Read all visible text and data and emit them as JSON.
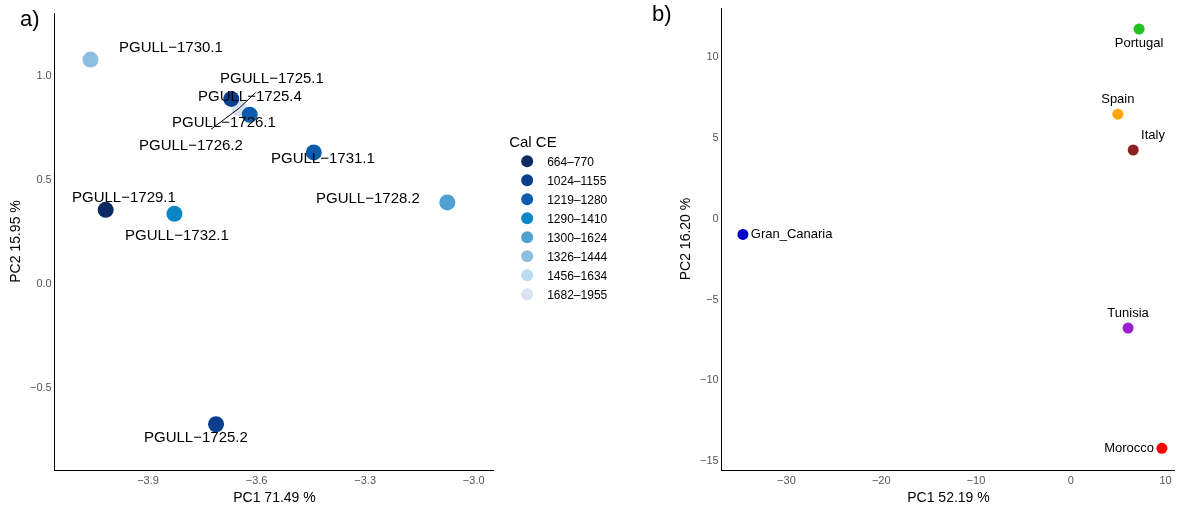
{
  "chart_data": [
    {
      "type": "scatter",
      "title": "a)",
      "xlabel": "PC1 71.49 %",
      "ylabel": "PC2 15.95 %",
      "legend_title": "Cal CE",
      "legend": "right",
      "marker": "circle",
      "xlim": [
        -4.157,
        -2.944
      ],
      "ylim": [
        -0.898,
        1.298
      ],
      "xticks": [
        {
          "value": -3.9,
          "label": "−3.9"
        },
        {
          "value": -3.6,
          "label": "−3.6"
        },
        {
          "value": -3.3,
          "label": "−3.3"
        },
        {
          "value": -3.0,
          "label": "−3.0"
        }
      ],
      "yticks": [
        {
          "value": -0.5,
          "label": "−0.5"
        },
        {
          "value": 0,
          "label": "0.0"
        },
        {
          "value": 0.5,
          "label": "0.5"
        },
        {
          "value": 1,
          "label": "1.0"
        }
      ],
      "series": [
        {
          "name": "664–770",
          "color": "#0b2a63",
          "x": [
            -4.017
          ],
          "values": [
            0.352
          ]
        },
        {
          "name": "1024–1155",
          "color": "#0a3f8f",
          "x": [
            -3.712,
            -3.67
          ],
          "values": [
            -0.678,
            0.885
          ]
        },
        {
          "name": "1219–1280",
          "color": "#0b5cad",
          "x": [
            -3.619,
            -3.442
          ],
          "values": [
            0.809,
            0.628
          ]
        },
        {
          "name": "1290–1410",
          "color": "#0b86c4",
          "x": [
            -3.827
          ],
          "values": [
            0.333
          ]
        },
        {
          "name": "1300–1624",
          "color": "#4fa0d3",
          "x": [
            -3.073
          ],
          "values": [
            0.388
          ]
        },
        {
          "name": "1326–1444",
          "color": "#8fbfe0",
          "x": [
            -4.059
          ],
          "values": [
            1.074
          ]
        },
        {
          "name": "1456–1634",
          "color": "#b9dbf2",
          "x": [
            null
          ],
          "values": [
            null
          ]
        },
        {
          "name": "1682–1955",
          "color": "#d8e2f2",
          "x": [
            -3.648
          ],
          "values": [
            0.841
          ]
        }
      ],
      "annotations": [
        {
          "text": "PGULL−1730.1",
          "x": -4.059,
          "y": 1.074
        },
        {
          "text": "PGULL−1725.1",
          "x": -3.648,
          "y": 0.841
        },
        {
          "text": "PGULL−1725.4",
          "x": -3.67,
          "y": 0.885
        },
        {
          "text": "PGULL−1726.1",
          "x": -3.619,
          "y": 0.809
        },
        {
          "text": "PGULL−1726.2",
          "x": -3.648,
          "y": 0.841
        },
        {
          "text": "PGULL−1731.1",
          "x": -3.442,
          "y": 0.628
        },
        {
          "text": "PGULL−1729.1",
          "x": -4.017,
          "y": 0.352
        },
        {
          "text": "PGULL−1732.1",
          "x": -3.827,
          "y": 0.333
        },
        {
          "text": "PGULL−1728.2",
          "x": -3.073,
          "y": 0.388
        },
        {
          "text": "PGULL−1725.2",
          "x": -3.712,
          "y": -0.678
        }
      ]
    },
    {
      "type": "scatter",
      "title": "b)",
      "xlabel": "PC1 52.19 %",
      "ylabel": "PC2 16.20 %",
      "marker": "circle",
      "xlim": [
        -36.8,
        11
      ],
      "ylim": [
        -15.6,
        13
      ],
      "xticks": [
        {
          "value": -30,
          "label": "−30"
        },
        {
          "value": -20,
          "label": "−20"
        },
        {
          "value": -10,
          "label": "−10"
        },
        0,
        10
      ],
      "yticks": [
        {
          "value": -15,
          "label": "−15"
        },
        {
          "value": -10,
          "label": "−10"
        },
        {
          "value": -5,
          "label": "−5"
        },
        0,
        5,
        10
      ],
      "series": [
        {
          "name": "Portugal",
          "color": "#1fc41f",
          "x": [
            7.21
          ],
          "values": [
            11.7
          ]
        },
        {
          "name": "Spain",
          "color": "#ffa500",
          "x": [
            4.97
          ],
          "values": [
            6.43
          ]
        },
        {
          "name": "Italy",
          "color": "#8b2323",
          "x": [
            6.59
          ],
          "values": [
            4.21
          ]
        },
        {
          "name": "Gran_Canaria",
          "color": "#0000cd",
          "x": [
            -34.59
          ],
          "values": [
            -1.02
          ]
        },
        {
          "name": "Tunisia",
          "color": "#9a1fd1",
          "x": [
            6.05
          ],
          "values": [
            -6.81
          ]
        },
        {
          "name": "Morocco",
          "color": "#ff0000",
          "x": [
            9.62
          ],
          "values": [
            -14.26
          ]
        }
      ]
    }
  ]
}
